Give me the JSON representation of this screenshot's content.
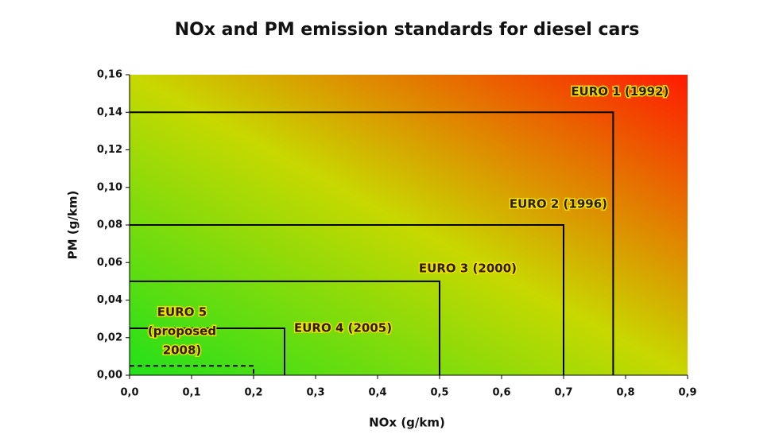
{
  "chart_data": {
    "type": "nested-rectangles",
    "title": "NOx and PM emission standards for diesel cars",
    "x_label": "NOx (g/km)",
    "y_label": "PM (g/km)",
    "xlim": [
      0,
      0.9
    ],
    "xticks": [
      {
        "value": 0,
        "label": "0,0"
      },
      {
        "value": 0.1,
        "label": "0,1"
      },
      {
        "value": 0.2,
        "label": "0,2"
      },
      {
        "value": 0.3,
        "label": "0,3"
      },
      {
        "value": 0.4,
        "label": "0,4"
      },
      {
        "value": 0.5,
        "label": "0,5"
      },
      {
        "value": 0.6,
        "label": "0,6"
      },
      {
        "value": 0.7,
        "label": "0,7"
      },
      {
        "value": 0.8,
        "label": "0,8"
      },
      {
        "value": 0.9,
        "label": "0,9"
      }
    ],
    "ylim": [
      0,
      0.16
    ],
    "yticks": [
      {
        "value": 0,
        "label": "0,00"
      },
      {
        "value": 0.02,
        "label": "0,02"
      },
      {
        "value": 0.04,
        "label": "0,04"
      },
      {
        "value": 0.06,
        "label": "0,06"
      },
      {
        "value": 0.08,
        "label": "0,08"
      },
      {
        "value": 0.1,
        "label": "0,10"
      },
      {
        "value": 0.12,
        "label": "0,12"
      },
      {
        "value": 0.14,
        "label": "0,14"
      },
      {
        "value": 0.16,
        "label": "0,16"
      }
    ],
    "background_colors": [
      "#22e01a",
      "#c8d800",
      "#ff1a00"
    ],
    "series": [
      {
        "label": [
          "EURO 1 (1992)"
        ],
        "x": 0.78,
        "y": 0.14,
        "color": "#000000",
        "dashed": false
      },
      {
        "label": [
          "EURO 2 (1996)"
        ],
        "x": 0.7,
        "y": 0.08,
        "color": "#000000",
        "dashed": false
      },
      {
        "label": [
          "EURO 3 (2000)"
        ],
        "x": 0.5,
        "y": 0.05,
        "color": "#000000",
        "dashed": false
      },
      {
        "label": [
          "EURO 4 (2005)"
        ],
        "x": 0.25,
        "y": 0.025,
        "color": "#000000",
        "dashed": false
      },
      {
        "label": [
          "EURO 5",
          "(proposed",
          "2008)"
        ],
        "x": 0.2,
        "y": 0.005,
        "color": "#000000",
        "dashed": true
      }
    ]
  }
}
